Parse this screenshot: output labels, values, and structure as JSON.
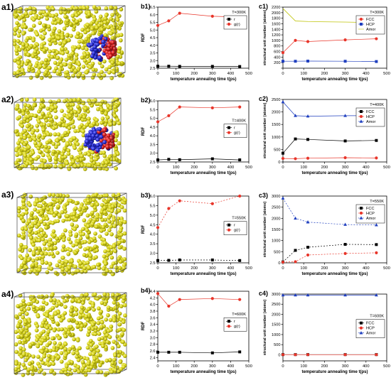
{
  "chart_data": [
    {
      "id": "b1",
      "label": "b1)",
      "type": "line",
      "xlabel": "temperature annealing time t(ps)",
      "ylabel": "RDF",
      "xlim": [
        0,
        500
      ],
      "ylim": [
        2.5,
        6.5
      ],
      "xticks": [
        0,
        100,
        200,
        300,
        400,
        500
      ],
      "yticks": [
        2.5,
        3.0,
        3.5,
        4.0,
        4.5,
        5.0,
        5.5,
        6.0,
        6.5
      ],
      "ytick_labels": [
        "2.5",
        "3.0",
        "3.5",
        "4.0",
        "4.5",
        "5.0",
        "5.5",
        "6.0",
        "6.5"
      ],
      "legend": {
        "position": "top-right",
        "title": "T=300K"
      },
      "x": [
        0,
        60,
        120,
        300,
        450
      ],
      "series": [
        {
          "name": "r",
          "color": "#000000",
          "marker": "square",
          "style": "solid",
          "values": [
            2.63,
            2.63,
            2.62,
            2.62,
            2.61
          ]
        },
        {
          "name": "g(r)",
          "color": "#e8352a",
          "marker": "circle",
          "style": "solid",
          "values": [
            5.3,
            5.6,
            6.1,
            5.9,
            5.85
          ]
        }
      ]
    },
    {
      "id": "c1",
      "label": "c1)",
      "type": "line",
      "xlabel": "temperature annealing time t(ps)",
      "ylabel": "structural unit number (atoms)",
      "xlim": [
        0,
        500
      ],
      "ylim": [
        0,
        2200
      ],
      "xticks": [
        0,
        100,
        200,
        300,
        400,
        500
      ],
      "yticks": [
        0,
        200,
        400,
        600,
        800,
        1000,
        1200,
        1400,
        1600,
        1800,
        2000,
        2200
      ],
      "ytick_labels": [
        "",
        "200",
        "400",
        "600",
        "800",
        "1000",
        "1200",
        "1400",
        "1600",
        "1800",
        "2000",
        "2200"
      ],
      "legend": {
        "position": "top-right",
        "title": "T=300K"
      },
      "x": [
        0,
        60,
        120,
        300,
        450
      ],
      "series": [
        {
          "name": "FCC",
          "color": "#e8352a",
          "marker": "circle",
          "style": "solid",
          "values": [
            560,
            1000,
            960,
            1020,
            1060
          ]
        },
        {
          "name": "HCP",
          "color": "#1f3fbf",
          "marker": "square",
          "style": "solid",
          "values": [
            250,
            250,
            255,
            250,
            240
          ]
        },
        {
          "name": "Amor",
          "color": "#c8cc2b",
          "marker": "none",
          "style": "solid",
          "values": [
            2150,
            1700,
            1680,
            1660,
            1640
          ]
        }
      ]
    },
    {
      "id": "b2",
      "label": "b2)",
      "type": "line",
      "xlabel": "temperature annealing time t(ps)",
      "ylabel": "RDF",
      "xlim": [
        0,
        500
      ],
      "ylim": [
        2.5,
        6.0
      ],
      "xticks": [
        0,
        100,
        200,
        300,
        400,
        500
      ],
      "yticks": [
        2.5,
        3.0,
        3.5,
        4.0,
        4.5,
        5.0,
        5.5,
        6.0
      ],
      "ytick_labels": [
        "2.5",
        "3.0",
        "3.5",
        "4.0",
        "4.5",
        "5.0",
        "5.5",
        "6.0"
      ],
      "legend": {
        "position": "right",
        "title": "T=400K"
      },
      "x": [
        0,
        60,
        120,
        300,
        450
      ],
      "series": [
        {
          "name": "r",
          "color": "#000000",
          "marker": "square",
          "style": "solid",
          "values": [
            2.62,
            2.65,
            2.63,
            2.68,
            2.62
          ]
        },
        {
          "name": "g(r)",
          "color": "#e8352a",
          "marker": "circle",
          "style": "solid",
          "values": [
            4.8,
            5.15,
            5.65,
            5.6,
            5.65
          ]
        }
      ]
    },
    {
      "id": "c2",
      "label": "c2)",
      "type": "line",
      "xlabel": "temperature annealing time t(ps)",
      "ylabel": "structural unit number (atoms)",
      "xlim": [
        0,
        500
      ],
      "ylim": [
        0,
        2500
      ],
      "xticks": [
        0,
        100,
        200,
        300,
        400,
        500
      ],
      "yticks": [
        0,
        500,
        1000,
        1500,
        2000,
        2500
      ],
      "ytick_labels": [
        "0",
        "500",
        "1000",
        "1500",
        "2000",
        "2500"
      ],
      "legend": {
        "position": "top-right",
        "title": "T=400K"
      },
      "x": [
        0,
        60,
        120,
        300,
        450
      ],
      "series": [
        {
          "name": "FCC",
          "color": "#000000",
          "marker": "square",
          "style": "solid",
          "values": [
            350,
            920,
            900,
            840,
            860
          ]
        },
        {
          "name": "HCP",
          "color": "#e8352a",
          "marker": "circle",
          "style": "solid",
          "values": [
            140,
            130,
            150,
            170,
            160
          ]
        },
        {
          "name": "Amor",
          "color": "#1f3fbf",
          "marker": "triangle",
          "style": "solid",
          "values": [
            2400,
            1850,
            1830,
            1850,
            1850
          ]
        }
      ]
    },
    {
      "id": "b3",
      "label": "b3)",
      "type": "line",
      "xlabel": "temperature annealing time t(ps)",
      "ylabel": "RDF",
      "xlim": [
        0,
        500
      ],
      "ylim": [
        2.5,
        6.0
      ],
      "xticks": [
        0,
        100,
        200,
        300,
        400,
        500
      ],
      "yticks": [
        2.5,
        3.0,
        3.5,
        4.0,
        4.5,
        5.0,
        5.5,
        6.0
      ],
      "ytick_labels": [
        "2.5",
        "3.0",
        "3.5",
        "4.0",
        "4.5",
        "5.0",
        "5.5",
        "6.0"
      ],
      "legend": {
        "position": "right",
        "title": "T=550K"
      },
      "x": [
        0,
        60,
        120,
        300,
        450
      ],
      "series": [
        {
          "name": "r",
          "color": "#000000",
          "marker": "square",
          "style": "dashed",
          "values": [
            2.62,
            2.63,
            2.65,
            2.65,
            2.62
          ]
        },
        {
          "name": "g(r)",
          "color": "#e8352a",
          "marker": "circle",
          "style": "dashed",
          "values": [
            4.35,
            5.35,
            5.75,
            5.6,
            6.0
          ]
        }
      ]
    },
    {
      "id": "c3",
      "label": "c3)",
      "type": "line",
      "xlabel": "temperature annealing time t(ps)",
      "ylabel": "structural unit number (atoms)",
      "xlim": [
        0,
        500
      ],
      "ylim": [
        0,
        3000
      ],
      "xticks": [
        0,
        100,
        200,
        300,
        400,
        500
      ],
      "yticks": [
        0,
        500,
        1000,
        1500,
        2000,
        2500,
        3000
      ],
      "ytick_labels": [
        "0",
        "500",
        "1000",
        "1500",
        "2000",
        "2500",
        "3000"
      ],
      "legend": {
        "position": "top-right",
        "title": "T=550K"
      },
      "x": [
        0,
        60,
        120,
        300,
        450
      ],
      "series": [
        {
          "name": "FCC",
          "color": "#000000",
          "marker": "square",
          "style": "dashed",
          "values": [
            40,
            560,
            700,
            830,
            820
          ]
        },
        {
          "name": "HCP",
          "color": "#e8352a",
          "marker": "circle",
          "style": "dashed",
          "values": [
            30,
            50,
            350,
            420,
            450
          ]
        },
        {
          "name": "Amor",
          "color": "#1f3fbf",
          "marker": "triangle",
          "style": "dashed",
          "values": [
            2900,
            2000,
            1830,
            1720,
            1700
          ]
        }
      ]
    },
    {
      "id": "b4",
      "label": "b4)",
      "type": "line",
      "xlabel": "temperature annealing time t(ps)",
      "ylabel": "RDF",
      "xlim": [
        0,
        500
      ],
      "ylim": [
        2.3,
        4.4
      ],
      "xticks": [
        0,
        100,
        200,
        300,
        400,
        500
      ],
      "yticks": [
        2.4,
        2.6,
        2.8,
        3.0,
        3.2,
        3.4,
        3.6,
        3.8,
        4.0,
        4.2,
        4.4
      ],
      "ytick_labels": [
        "2.4",
        "2.6",
        "2.8",
        "3.0",
        "3.2",
        "3.4",
        "3.6",
        "3.8",
        "4.0",
        "4.2",
        "4.4"
      ],
      "legend": {
        "position": "right",
        "title": "T=600K"
      },
      "x": [
        0,
        60,
        120,
        300,
        450
      ],
      "series": [
        {
          "name": "r",
          "color": "#000000",
          "marker": "square",
          "style": "solid",
          "values": [
            2.56,
            2.56,
            2.56,
            2.54,
            2.57
          ]
        },
        {
          "name": "g(r)",
          "color": "#e8352a",
          "marker": "circle",
          "style": "solid",
          "values": [
            4.33,
            3.95,
            4.15,
            4.18,
            4.15
          ]
        }
      ]
    },
    {
      "id": "c4",
      "label": "c4)",
      "type": "line",
      "xlabel": "temperature annealing time t(ps)",
      "ylabel": "structural unit number (atoms)",
      "xlim": [
        0,
        500
      ],
      "ylim": [
        -300,
        3000
      ],
      "xticks": [
        0,
        100,
        200,
        300,
        400,
        500
      ],
      "yticks": [
        0,
        500,
        1000,
        1500,
        2000,
        2500,
        3000
      ],
      "ytick_labels": [
        "0",
        "500",
        "1000",
        "1500",
        "2000",
        "2500",
        "3000"
      ],
      "legend": {
        "position": "right",
        "title": "T=600K"
      },
      "x": [
        0,
        60,
        120,
        300,
        450
      ],
      "series": [
        {
          "name": "FCC",
          "color": "#000000",
          "marker": "square",
          "style": "solid",
          "values": [
            10,
            10,
            10,
            10,
            10
          ]
        },
        {
          "name": "HCP",
          "color": "#e8352a",
          "marker": "circle",
          "style": "solid",
          "values": [
            5,
            5,
            5,
            5,
            5
          ]
        },
        {
          "name": "Amor",
          "color": "#1f3fbf",
          "marker": "triangle",
          "style": "solid",
          "values": [
            2950,
            2950,
            2950,
            2950,
            2950
          ]
        }
      ]
    }
  ],
  "structures": [
    {
      "id": "a1",
      "label": "a1)",
      "cluster": true,
      "cluster_colors": [
        "#2a2fd6",
        "#d81e1e"
      ]
    },
    {
      "id": "a2",
      "label": "a2)",
      "cluster": true,
      "cluster_colors": [
        "#2a2fd6",
        "#d81e1e"
      ]
    },
    {
      "id": "a3",
      "label": "a3)",
      "cluster": false
    },
    {
      "id": "a4",
      "label": "a4)",
      "cluster": false
    }
  ],
  "colors": {
    "atom": "#d8d41a",
    "atom_highlight": "#f6f38a",
    "atom_shadow": "#8c8a08",
    "box_edge": "#444444"
  }
}
